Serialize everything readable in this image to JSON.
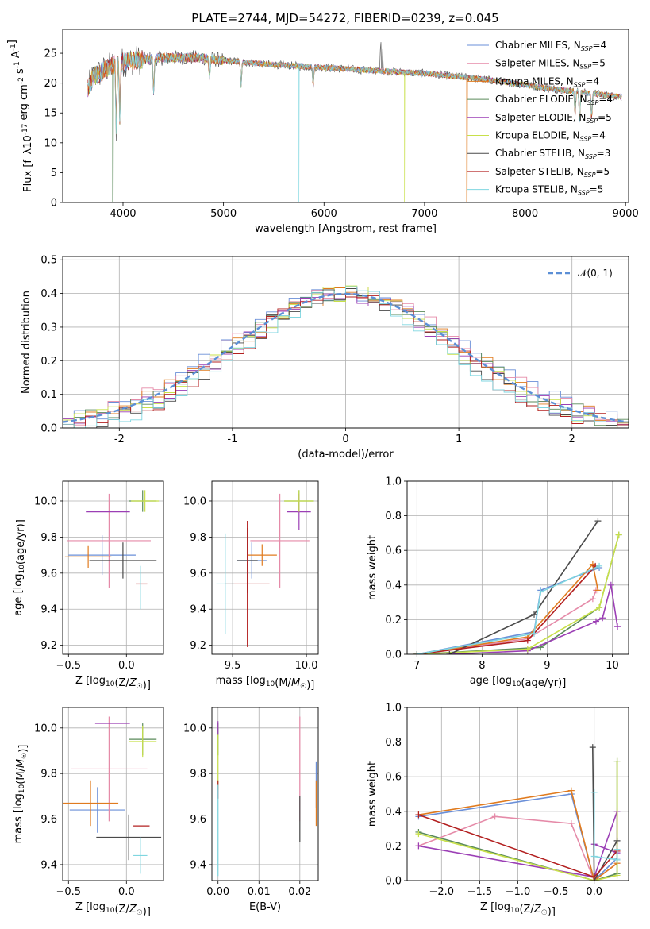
{
  "figure_title": "PLATE=2744, MJD=54272, FIBERID=0239, z=0.045",
  "series_colors": [
    "#6a8fd8",
    "#e58aa8",
    "#e07b1f",
    "#5a8a5a",
    "#9b3fb5",
    "#c8e04a",
    "#4a4a4a",
    "#b32020",
    "#7fd6e0"
  ],
  "models": [
    {
      "label": "Chabrier MILES, N_SSP=4"
    },
    {
      "label": "Salpeter MILES, N_SSP=5"
    },
    {
      "label": "Kroupa MILES, N_SSP=4"
    },
    {
      "label": "Chabrier ELODIE, N_SSP=4"
    },
    {
      "label": "Salpeter ELODIE, N_SSP=5"
    },
    {
      "label": "Kroupa ELODIE, N_SSP=4"
    },
    {
      "label": "Chabrier STELIB, N_SSP=3"
    },
    {
      "label": "Salpeter STELIB, N_SSP=5"
    },
    {
      "label": "Kroupa STELIB, N_SSP=5"
    }
  ],
  "chart_data": [
    {
      "id": "spectrum",
      "type": "line",
      "xlabel": "wavelength [Angstrom, rest frame]",
      "ylabel": "Flux [f_λ10^-17 erg cm^-2 s^-1 A^-1]",
      "xlim": [
        3400,
        9030
      ],
      "ylim": [
        0,
        29
      ],
      "xticks": [
        4000,
        5000,
        6000,
        7000,
        8000,
        9000
      ],
      "yticks": [
        0,
        5,
        10,
        15,
        20,
        25
      ],
      "grid": false,
      "legend": "right",
      "continuum": {
        "x": [
          3650,
          3700,
          3800,
          3900,
          4000,
          4200,
          4400,
          4600,
          4800,
          5000,
          5200,
          5400,
          5600,
          5800,
          6000,
          6200,
          6400,
          6600,
          6800,
          7000,
          7200,
          7400,
          7600,
          7800,
          8000,
          8200,
          8400,
          8600,
          8800,
          8960
        ],
        "y": [
          19,
          21,
          22,
          23,
          23.5,
          24,
          24.2,
          24.3,
          24.2,
          23.8,
          23.5,
          23.2,
          23,
          22.8,
          22.6,
          22.4,
          22.2,
          22.0,
          21.8,
          21.6,
          21.3,
          21.0,
          20.6,
          20.2,
          19.7,
          19.2,
          18.8,
          18.4,
          18.0,
          17.7
        ]
      },
      "absorption_features": [
        {
          "x": 3933,
          "depth": 11
        },
        {
          "x": 3968,
          "depth": 9
        },
        {
          "x": 4305,
          "depth": 6
        },
        {
          "x": 4861,
          "depth": 3
        },
        {
          "x": 5175,
          "depth": 4
        },
        {
          "x": 5892,
          "depth": 3
        },
        {
          "x": 8498,
          "depth": 4
        },
        {
          "x": 8542,
          "depth": 5
        },
        {
          "x": 8662,
          "depth": 4
        }
      ],
      "emission_features": [
        {
          "x": 6563,
          "height": 6
        },
        {
          "x": 6583,
          "height": 4
        }
      ],
      "model_cutoffs": [
        {
          "model": 2,
          "x": 7420
        },
        {
          "model": 5,
          "x": 6800
        },
        {
          "model": 8,
          "x": 5750
        },
        {
          "model": 3,
          "x": 3900
        }
      ]
    },
    {
      "id": "residual-histogram",
      "type": "line",
      "xlabel": "(data-model)/error",
      "ylabel": "Normed distribution",
      "xlim": [
        -2.5,
        2.5
      ],
      "ylim": [
        0,
        0.51
      ],
      "xticks": [
        -2,
        -1,
        0,
        1,
        2
      ],
      "yticks": [
        0.0,
        0.1,
        0.2,
        0.3,
        0.4,
        0.5
      ],
      "ytick_labels": [
        "0.0",
        "0.1",
        "0.2",
        "0.3",
        "0.4",
        "0.5"
      ],
      "grid": true,
      "legend": "top-right",
      "gaussian_label": "𝒩(0, 1)",
      "gaussian_color": "#5b8fd6",
      "bin_width": 0.1
    },
    {
      "id": "age-vs-Z",
      "type": "scatter",
      "xlabel": "Z [log10(Z/Z☉)]",
      "ylabel": "age  [log10(age/yr)]",
      "xlim": [
        -0.55,
        0.32
      ],
      "ylim": [
        9.15,
        10.11
      ],
      "xticks": [
        -0.5,
        0.0
      ],
      "xtick_labels": [
        "−0.5",
        "0.0"
      ],
      "yticks": [
        9.2,
        9.4,
        9.6,
        9.8,
        10.0
      ],
      "ytick_labels": [
        "9.2",
        "9.4",
        "9.6",
        "9.8",
        "10.0"
      ],
      "grid": true,
      "crosses": [
        {
          "model": 0,
          "x": -0.21,
          "xerr": 0.29,
          "y": 9.7,
          "yerr": 0.11
        },
        {
          "model": 1,
          "x": -0.15,
          "xerr": 0.36,
          "y": 9.78,
          "yerr": 0.26
        },
        {
          "model": 2,
          "x": -0.33,
          "xerr": 0.2,
          "y": 9.69,
          "yerr": 0.06
        },
        {
          "model": 3,
          "x": 0.14,
          "xerr": 0.12,
          "y": 10.0,
          "yerr": 0.06
        },
        {
          "model": 4,
          "x": -0.16,
          "xerr": 0.19,
          "y": 9.94,
          "yerr": 0.0
        },
        {
          "model": 5,
          "x": 0.16,
          "xerr": 0.12,
          "y": 10.0,
          "yerr": 0.06
        },
        {
          "model": 6,
          "x": -0.03,
          "xerr": 0.29,
          "y": 9.67,
          "yerr": 0.1
        },
        {
          "model": 7,
          "x": 0.13,
          "xerr": 0.05,
          "y": 9.54,
          "yerr": 0.0
        },
        {
          "model": 8,
          "x": 0.12,
          "xerr": 0.0,
          "y": 9.52,
          "yerr": 0.12
        }
      ]
    },
    {
      "id": "age-vs-mass",
      "type": "scatter",
      "xlabel": "mass [log10(M/M☉)]",
      "ylabel": "",
      "xlim": [
        9.36,
        10.08
      ],
      "ylim": [
        9.15,
        10.11
      ],
      "xticks": [
        9.5,
        10.0
      ],
      "xtick_labels": [
        "9.5",
        "10.0"
      ],
      "yticks": [
        9.2,
        9.4,
        9.6,
        9.8,
        10.0
      ],
      "ytick_labels": [
        "9.2",
        "9.4",
        "9.6",
        "9.8",
        "10.0"
      ],
      "grid": true,
      "crosses": [
        {
          "model": 0,
          "x": 9.63,
          "xerr": 0.1,
          "y": 9.67,
          "yerr": 0.1
        },
        {
          "model": 1,
          "x": 9.82,
          "xerr": 0.2,
          "y": 9.78,
          "yerr": 0.26
        },
        {
          "model": 2,
          "x": 9.7,
          "xerr": 0.1,
          "y": 9.7,
          "yerr": 0.06
        },
        {
          "model": 3,
          "x": 9.95,
          "xerr": 0.1,
          "y": 10.0,
          "yerr": 0.06
        },
        {
          "model": 4,
          "x": 9.95,
          "xerr": 0.08,
          "y": 9.94,
          "yerr": 0.1
        },
        {
          "model": 5,
          "x": 9.95,
          "xerr": 0.1,
          "y": 10.0,
          "yerr": 0.06
        },
        {
          "model": 6,
          "x": 9.6,
          "xerr": 0.07,
          "y": 9.67,
          "yerr": 0.18
        },
        {
          "model": 7,
          "x": 9.6,
          "xerr": 0.15,
          "y": 9.54,
          "yerr": 0.35
        },
        {
          "model": 8,
          "x": 9.45,
          "xerr": 0.06,
          "y": 9.54,
          "yerr": 0.28
        }
      ]
    },
    {
      "id": "mass-weight-vs-age",
      "type": "line",
      "xlabel": "age  [log10(age/yr)]",
      "ylabel": "mass weight",
      "xlim": [
        6.85,
        10.25
      ],
      "ylim": [
        0,
        1
      ],
      "xticks": [
        7,
        8,
        9,
        10
      ],
      "yticks": [
        0.0,
        0.2,
        0.4,
        0.6,
        0.8,
        1.0
      ],
      "ytick_labels": [
        "0.0",
        "0.2",
        "0.4",
        "0.6",
        "0.8",
        "1.0"
      ],
      "grid": true,
      "series": [
        {
          "model": 0,
          "x": [
            7.0,
            8.8,
            8.9,
            9.8
          ],
          "y": [
            0.0,
            0.13,
            0.37,
            0.5
          ]
        },
        {
          "model": 1,
          "x": [
            7.0,
            8.7,
            9.7,
            9.75
          ],
          "y": [
            0.0,
            0.09,
            0.32,
            0.37
          ]
        },
        {
          "model": 2,
          "x": [
            7.0,
            8.7,
            9.7,
            9.78
          ],
          "y": [
            0.0,
            0.1,
            0.52,
            0.37
          ]
        },
        {
          "model": 3,
          "x": [
            7.0,
            8.9,
            9.8,
            10.1
          ],
          "y": [
            0.0,
            0.04,
            0.27,
            0.69
          ]
        },
        {
          "model": 4,
          "x": [
            7.5,
            8.7,
            9.75,
            9.85,
            9.98,
            10.08
          ],
          "y": [
            0.0,
            0.02,
            0.19,
            0.21,
            0.4,
            0.16
          ]
        },
        {
          "model": 5,
          "x": [
            7.0,
            8.7,
            9.8,
            10.1
          ],
          "y": [
            0.0,
            0.03,
            0.27,
            0.69
          ]
        },
        {
          "model": 6,
          "x": [
            7.5,
            8.8,
            9.78
          ],
          "y": [
            0.0,
            0.23,
            0.77
          ]
        },
        {
          "model": 7,
          "x": [
            7.0,
            8.7,
            9.74
          ],
          "y": [
            0.0,
            0.08,
            0.51
          ]
        },
        {
          "model": 8,
          "x": [
            7.0,
            8.8,
            8.9,
            9.8
          ],
          "y": [
            0.0,
            0.12,
            0.36,
            0.51
          ]
        }
      ]
    },
    {
      "id": "mass-vs-Z",
      "type": "scatter",
      "xlabel": "Z [log10(Z/Z☉)]",
      "ylabel": "mass [log10(M/M☉)]",
      "xlim": [
        -0.55,
        0.32
      ],
      "ylim": [
        9.33,
        10.09
      ],
      "xticks": [
        -0.5,
        0.0
      ],
      "xtick_labels": [
        "−0.5",
        "0.0"
      ],
      "yticks": [
        9.4,
        9.6,
        9.8,
        10.0
      ],
      "ytick_labels": [
        "9.4",
        "9.6",
        "9.8",
        "10.0"
      ],
      "grid": true,
      "crosses": [
        {
          "model": 0,
          "x": -0.25,
          "xerr": 0.24,
          "y": 9.64,
          "yerr": 0.1
        },
        {
          "model": 1,
          "x": -0.15,
          "xerr": 0.33,
          "y": 9.82,
          "yerr": 0.23
        },
        {
          "model": 2,
          "x": -0.31,
          "xerr": 0.24,
          "y": 9.67,
          "yerr": 0.1
        },
        {
          "model": 3,
          "x": 0.14,
          "xerr": 0.12,
          "y": 9.95,
          "yerr": 0.07
        },
        {
          "model": 4,
          "x": -0.12,
          "xerr": 0.15,
          "y": 10.02,
          "yerr": 0.0
        },
        {
          "model": 5,
          "x": 0.14,
          "xerr": 0.12,
          "y": 9.94,
          "yerr": 0.07
        },
        {
          "model": 6,
          "x": 0.02,
          "xerr": 0.28,
          "y": 9.52,
          "yerr": 0.1
        },
        {
          "model": 7,
          "x": 0.13,
          "xerr": 0.07,
          "y": 9.57,
          "yerr": 0.0
        },
        {
          "model": 8,
          "x": 0.12,
          "xerr": 0.06,
          "y": 9.44,
          "yerr": 0.08
        }
      ]
    },
    {
      "id": "mass-vs-EBV",
      "type": "scatter",
      "xlabel": "E(B-V)",
      "ylabel": "",
      "xlim": [
        -0.0015,
        0.0245
      ],
      "ylim": [
        9.33,
        10.09
      ],
      "xticks": [
        0.0,
        0.01,
        0.02
      ],
      "xtick_labels": [
        "0.00",
        "0.01",
        "0.02"
      ],
      "yticks": [
        9.4,
        9.6,
        9.8,
        10.0
      ],
      "ytick_labels": [
        "9.4",
        "9.6",
        "9.8",
        "10.0"
      ],
      "grid": true,
      "crosses": [
        {
          "model": 0,
          "x": 0.024,
          "xerr": 0.0,
          "y": 9.75,
          "yerr": 0.1
        },
        {
          "model": 1,
          "x": 0.02,
          "xerr": 0.0,
          "y": 9.82,
          "yerr": 0.23
        },
        {
          "model": 2,
          "x": 0.024,
          "xerr": 0.0,
          "y": 9.67,
          "yerr": 0.1
        },
        {
          "model": 3,
          "x": 0.0,
          "xerr": 0.0,
          "y": 9.95,
          "yerr": 0.07
        },
        {
          "model": 4,
          "x": 0.0,
          "xerr": 0.0,
          "y": 10.0,
          "yerr": 0.03
        },
        {
          "model": 5,
          "x": 0.0,
          "xerr": 0.0,
          "y": 9.85,
          "yerr": 0.12
        },
        {
          "model": 6,
          "x": 0.02,
          "xerr": 0.0,
          "y": 9.6,
          "yerr": 0.1
        },
        {
          "model": 7,
          "x": 0.0,
          "xerr": 0.0,
          "y": 9.73,
          "yerr": 0.04
        },
        {
          "model": 8,
          "x": 0.0,
          "xerr": 0.0,
          "y": 9.55,
          "yerr": 0.2
        }
      ]
    },
    {
      "id": "mass-weight-vs-Z",
      "type": "line",
      "xlabel": "Z [log10(Z/Z☉)]",
      "ylabel": "mass weight",
      "xlim": [
        -2.45,
        0.45
      ],
      "ylim": [
        0,
        1
      ],
      "xticks": [
        -2.0,
        -1.5,
        -1.0,
        -0.5,
        0.0
      ],
      "xtick_labels": [
        "−2.0",
        "−1.5",
        "−1.0",
        "−0.5",
        "0.0"
      ],
      "yticks": [
        0.0,
        0.2,
        0.4,
        0.6,
        0.8,
        1.0
      ],
      "ytick_labels": [
        "0.0",
        "0.2",
        "0.4",
        "0.6",
        "0.8",
        "1.0"
      ],
      "grid": true,
      "series": [
        {
          "model": 0,
          "x": [
            -2.3,
            -0.3,
            0.0,
            0.3
          ],
          "y": [
            0.37,
            0.5,
            0.0,
            0.13
          ]
        },
        {
          "model": 1,
          "x": [
            -2.3,
            -1.3,
            -0.3,
            0.0,
            0.3
          ],
          "y": [
            0.2,
            0.37,
            0.33,
            0.0,
            0.1
          ]
        },
        {
          "model": 2,
          "x": [
            -2.3,
            -0.3,
            0.0,
            0.3
          ],
          "y": [
            0.38,
            0.52,
            0.0,
            0.1
          ]
        },
        {
          "model": 3,
          "x": [
            -2.3,
            0.0,
            0.3,
            0.3
          ],
          "y": [
            0.28,
            0.0,
            0.04,
            0.69
          ]
        },
        {
          "model": 4,
          "x": [
            -2.3,
            0.0,
            0.3,
            0.3,
            0.0
          ],
          "y": [
            0.2,
            0.02,
            0.4,
            0.16,
            0.21
          ]
        },
        {
          "model": 5,
          "x": [
            -2.3,
            0.0,
            0.3,
            0.3
          ],
          "y": [
            0.27,
            0.0,
            0.03,
            0.69
          ]
        },
        {
          "model": 6,
          "x": [
            -0.02,
            0.0,
            0.3
          ],
          "y": [
            0.77,
            0.0,
            0.23
          ]
        },
        {
          "model": 7,
          "x": [
            -2.3,
            0.0,
            0.3
          ],
          "y": [
            0.38,
            0.02,
            0.17
          ]
        },
        {
          "model": 8,
          "x": [
            0.0,
            0.0,
            0.3,
            0.3
          ],
          "y": [
            0.51,
            0.14,
            0.12,
            0.18
          ]
        }
      ]
    }
  ]
}
